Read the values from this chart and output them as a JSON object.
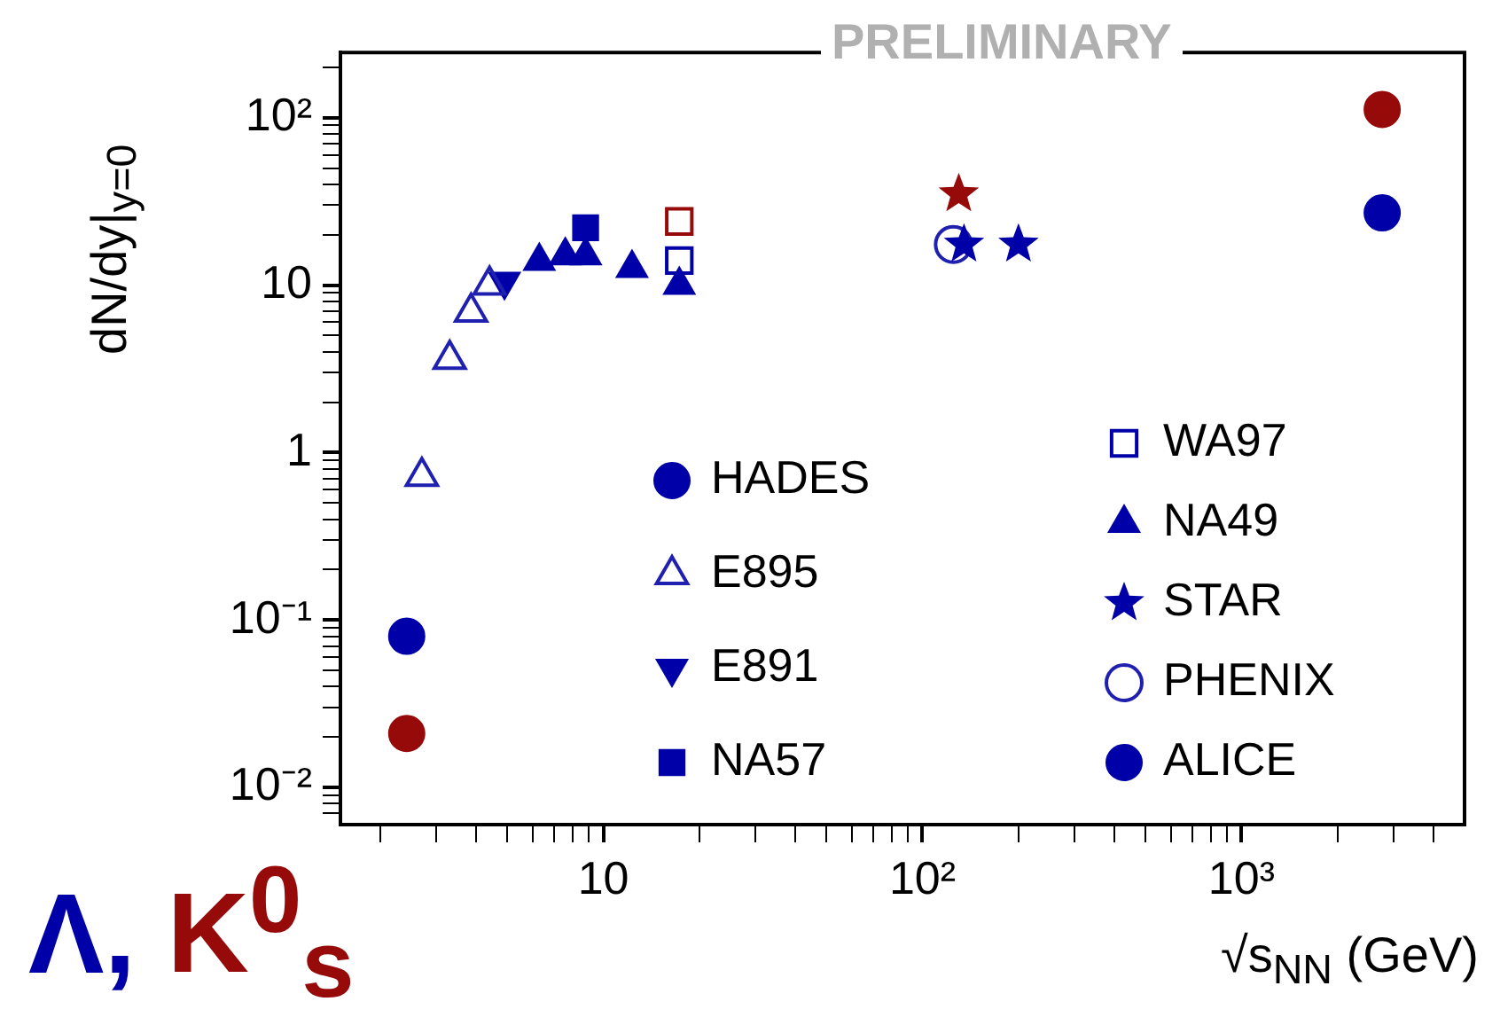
{
  "chart_data": {
    "type": "scatter",
    "ylabel": "dN/dy|$_{y=0}$",
    "xlabel": "√s$_{NN}$ (GeV)",
    "annotations": [
      "PRELIMINARY",
      "Λ, K$^{0}$$_{s}$"
    ],
    "log": "xy",
    "grid": false,
    "legend": "bottom right",
    "xlim": [
      1.5,
      5000
    ],
    "ylim": [
      0.006,
      245
    ],
    "xticks": [
      {
        "value": 2,
        "label": null
      },
      {
        "value": 3,
        "label": null
      },
      {
        "value": 4,
        "label": null
      },
      {
        "value": 5,
        "label": null
      },
      {
        "value": 6,
        "label": null
      },
      {
        "value": 7,
        "label": null
      },
      {
        "value": 8,
        "label": null
      },
      {
        "value": 9,
        "label": null
      },
      10,
      {
        "value": 20,
        "label": null
      },
      {
        "value": 30,
        "label": null
      },
      {
        "value": 40,
        "label": null
      },
      {
        "value": 50,
        "label": null
      },
      {
        "value": 60,
        "label": null
      },
      {
        "value": 70,
        "label": null
      },
      {
        "value": 80,
        "label": null
      },
      {
        "value": 90,
        "label": null
      },
      {
        "value": 100,
        "label": "10²"
      },
      {
        "value": 200,
        "label": null
      },
      {
        "value": 300,
        "label": null
      },
      {
        "value": 400,
        "label": null
      },
      {
        "value": 500,
        "label": null
      },
      {
        "value": 600,
        "label": null
      },
      {
        "value": 700,
        "label": null
      },
      {
        "value": 800,
        "label": null
      },
      {
        "value": 900,
        "label": null
      },
      {
        "value": 1000,
        "label": "10³"
      },
      {
        "value": 2000,
        "label": null
      },
      {
        "value": 3000,
        "label": null
      },
      {
        "value": 4000,
        "label": null
      }
    ],
    "yticks": [
      {
        "value": 0.007,
        "label": null
      },
      {
        "value": 0.008,
        "label": null
      },
      {
        "value": 0.009,
        "label": null
      },
      {
        "value": 0.01,
        "label": "10⁻²"
      },
      {
        "value": 0.02,
        "label": null
      },
      {
        "value": 0.03,
        "label": null
      },
      {
        "value": 0.04,
        "label": null
      },
      {
        "value": 0.05,
        "label": null
      },
      {
        "value": 0.06,
        "label": null
      },
      {
        "value": 0.07,
        "label": null
      },
      {
        "value": 0.08,
        "label": null
      },
      {
        "value": 0.09,
        "label": null
      },
      {
        "value": 0.1,
        "label": "10⁻¹"
      },
      {
        "value": 0.2,
        "label": null
      },
      {
        "value": 0.3,
        "label": null
      },
      {
        "value": 0.4,
        "label": null
      },
      {
        "value": 0.5,
        "label": null
      },
      {
        "value": 0.6,
        "label": null
      },
      {
        "value": 0.7,
        "label": null
      },
      {
        "value": 0.8,
        "label": null
      },
      {
        "value": 0.9,
        "label": null
      },
      1,
      {
        "value": 2,
        "label": null
      },
      {
        "value": 3,
        "label": null
      },
      {
        "value": 4,
        "label": null
      },
      {
        "value": 5,
        "label": null
      },
      {
        "value": 6,
        "label": null
      },
      {
        "value": 7,
        "label": null
      },
      {
        "value": 8,
        "label": null
      },
      {
        "value": 9,
        "label": null
      },
      10,
      {
        "value": 20,
        "label": null
      },
      {
        "value": 30,
        "label": null
      },
      {
        "value": 40,
        "label": null
      },
      {
        "value": 50,
        "label": null
      },
      {
        "value": 60,
        "label": null
      },
      {
        "value": 70,
        "label": null
      },
      {
        "value": 80,
        "label": null
      },
      {
        "value": 90,
        "label": null
      },
      {
        "value": 100,
        "label": "10²"
      },
      {
        "value": 200,
        "label": null
      }
    ],
    "series": [
      {
        "name": "HADES",
        "color": "#0000a8",
        "marker": "circle",
        "x": [
          2.42
        ],
        "values": [
          0.08
        ]
      },
      {
        "name": "E895",
        "color": "#2020b0",
        "marker": "triangle-open",
        "x": [
          2.7,
          3.3,
          3.85,
          4.4
        ],
        "values": [
          0.72,
          3.6,
          6.9,
          10
        ]
      },
      {
        "name": "E891",
        "color": "#0000a8",
        "marker": "triangle-down",
        "x": [
          4.9
        ],
        "values": [
          10.5
        ]
      },
      {
        "name": "NA57",
        "color": "#0000a8",
        "marker": "square",
        "x": [
          8.8
        ],
        "values": [
          22
        ]
      },
      {
        "name": "WA97",
        "color": "#0000a8",
        "marker": "square-open",
        "x": [
          17.3
        ],
        "values": [
          14
        ]
      },
      {
        "name": "NA49",
        "color": "#0000a8",
        "marker": "triangle",
        "x": [
          6.3,
          7.6,
          8.8,
          12.3,
          17.3
        ],
        "values": [
          13.9,
          15,
          15,
          12.6,
          10
        ]
      },
      {
        "name": "STAR",
        "color": "#0000a8",
        "marker": "star",
        "x": [
          135,
          200
        ],
        "values": [
          17.5,
          17.5
        ]
      },
      {
        "name": "PHENIX",
        "color": "#2020b0",
        "marker": "circle-open",
        "x": [
          125
        ],
        "values": [
          17.5
        ]
      },
      {
        "name": "ALICE",
        "color": "#0000a8",
        "marker": "circle",
        "x": [
          2760
        ],
        "values": [
          27
        ]
      },
      {
        "color": "#960a0a",
        "marker": "circle",
        "x": [
          2.42,
          2760
        ],
        "values": [
          0.021,
          112
        ]
      },
      {
        "color": "#960a0a",
        "marker": "square-open",
        "x": [
          17.3
        ],
        "values": [
          24
        ]
      },
      {
        "color": "#960a0a",
        "marker": "star",
        "x": [
          130
        ],
        "values": [
          35
        ]
      }
    ]
  }
}
